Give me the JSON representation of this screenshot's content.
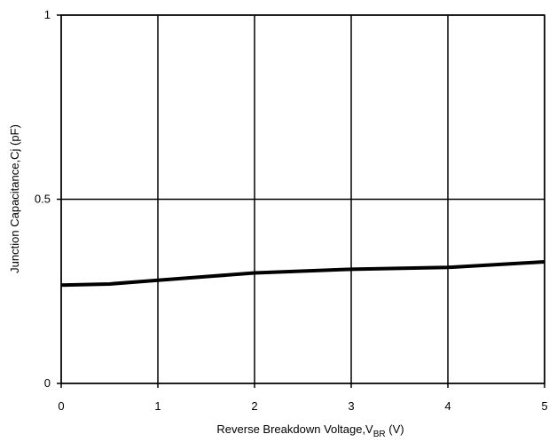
{
  "chart_data": {
    "type": "line",
    "x_label": [
      "Reverse Breakdown Voltage,V",
      "BR",
      " (V)"
    ],
    "y_label": "Junction Capacitance,Cj (pF)",
    "x": [
      0,
      0.5,
      1,
      1.5,
      2,
      3,
      4,
      5
    ],
    "series": [
      {
        "name": "Cj",
        "color": "#000000",
        "values": [
          0.267,
          0.27,
          0.28,
          0.29,
          0.3,
          0.31,
          0.315,
          0.33
        ]
      }
    ],
    "xlim": [
      0,
      5
    ],
    "xticks": [
      0,
      1,
      2,
      3,
      4,
      5
    ],
    "ylim": [
      0,
      1
    ],
    "yticks": [
      0,
      0.5,
      1
    ],
    "grid": true
  }
}
